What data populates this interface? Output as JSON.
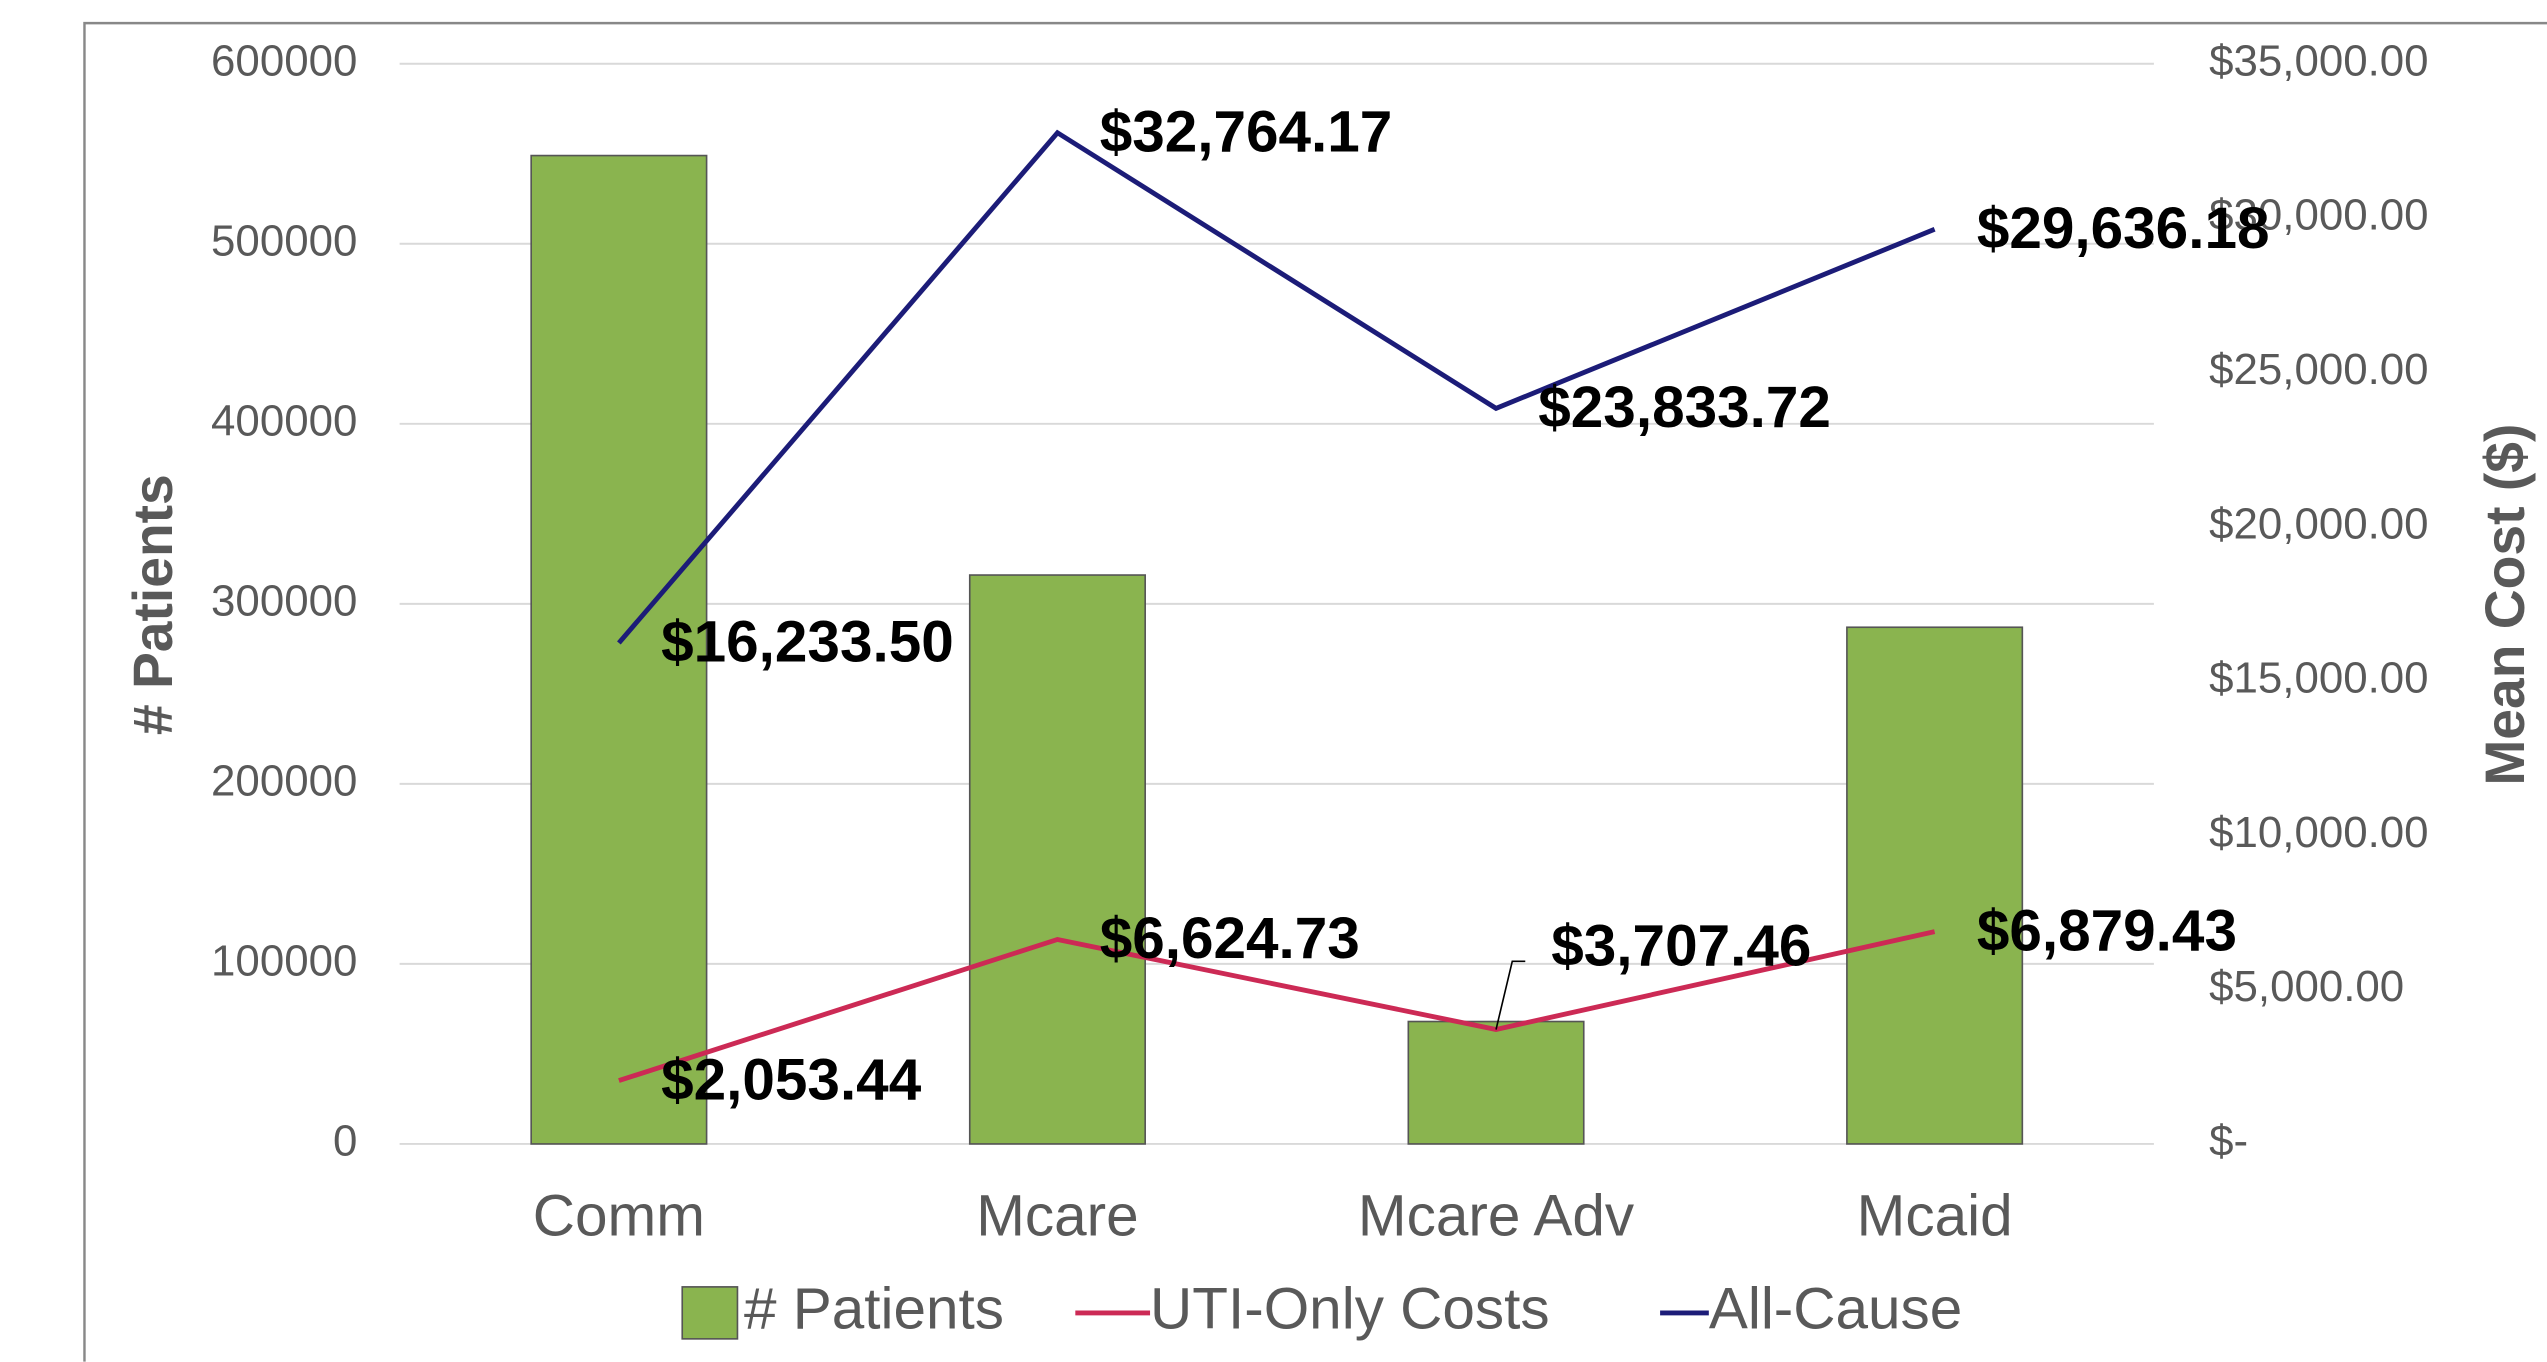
{
  "chart_data": {
    "type": "bar",
    "categories": [
      "Comm",
      "Mcare",
      "Mcare Adv",
      "Mcaid"
    ],
    "ylabel": "# Patients",
    "y2label": "Mean Cost ($)",
    "ylim": [
      0,
      600000
    ],
    "yticks": [
      0,
      100000,
      200000,
      300000,
      400000,
      500000,
      600000
    ],
    "y2lim": [
      0,
      35000
    ],
    "y2ticks": [
      {
        "value": 0,
        "label": "$-"
      },
      {
        "value": 5000,
        "label": "$5,000.00"
      },
      {
        "value": 10000,
        "label": "$10,000.00"
      },
      {
        "value": 15000,
        "label": "$15,000.00"
      },
      {
        "value": 20000,
        "label": "$20,000.00"
      },
      {
        "value": 25000,
        "label": "$25,000.00"
      },
      {
        "value": 30000,
        "label": "$30,000.00"
      },
      {
        "value": 35000,
        "label": "$35,000.00"
      }
    ],
    "grid": true,
    "legend": "bottom",
    "series": [
      {
        "name": "# Patients",
        "type": "bar",
        "color": "#8ab44f",
        "values": [
          549000,
          316000,
          68000,
          287000
        ]
      },
      {
        "name": "UTI-Only Costs",
        "type": "line",
        "axis": "y2",
        "color": "#cc2a55",
        "values": [
          2053.44,
          6624.73,
          3707.46,
          6879.43
        ],
        "value_labels": [
          "$2,053.44",
          "$6,624.73",
          "$3,707.46",
          "$6,879.43"
        ]
      },
      {
        "name": "All-Cause",
        "type": "line",
        "axis": "y2",
        "color": "#1c1c78",
        "values": [
          16233.5,
          32764.17,
          23833.72,
          29636.18
        ],
        "value_labels": [
          "$16,233.50",
          "$32,764.17",
          "$23,833.72",
          "$29,636.18"
        ]
      }
    ]
  }
}
